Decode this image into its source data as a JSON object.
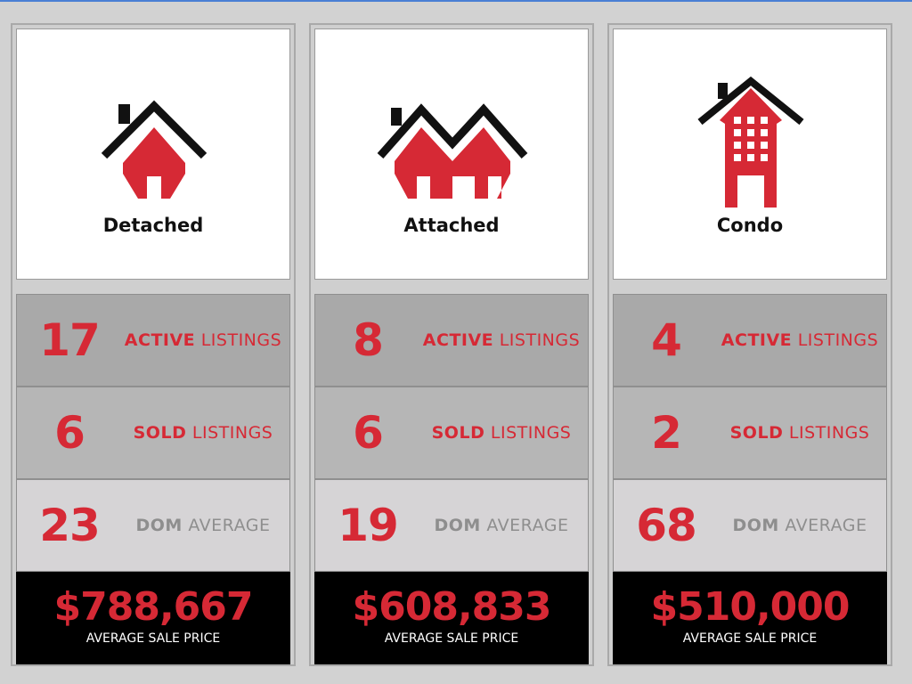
{
  "colors": {
    "accent": "#d62935",
    "roof": "#111111",
    "background": "#d2d2d2"
  },
  "cards": [
    {
      "title": "Detached",
      "icon": "detached-house-icon",
      "active": {
        "value": "17",
        "word1": "ACTIVE",
        "word2": "LISTINGS"
      },
      "sold": {
        "value": "6",
        "word1": "SOLD",
        "word2": "LISTINGS"
      },
      "dom": {
        "value": "23",
        "word1": "DOM",
        "word2": "AVERAGE"
      },
      "price": {
        "value": "$788,667",
        "caption": "AVERAGE SALE PRICE"
      }
    },
    {
      "title": "Attached",
      "icon": "attached-house-icon",
      "active": {
        "value": "8",
        "word1": "ACTIVE",
        "word2": "LISTINGS"
      },
      "sold": {
        "value": "6",
        "word1": "SOLD",
        "word2": "LISTINGS"
      },
      "dom": {
        "value": "19",
        "word1": "DOM",
        "word2": "AVERAGE"
      },
      "price": {
        "value": "$608,833",
        "caption": "AVERAGE SALE PRICE"
      }
    },
    {
      "title": "Condo",
      "icon": "condo-building-icon",
      "active": {
        "value": "4",
        "word1": "ACTIVE",
        "word2": "LISTINGS"
      },
      "sold": {
        "value": "2",
        "word1": "SOLD",
        "word2": "LISTINGS"
      },
      "dom": {
        "value": "68",
        "word1": "DOM",
        "word2": "AVERAGE"
      },
      "price": {
        "value": "$510,000",
        "caption": "AVERAGE SALE PRICE"
      }
    }
  ]
}
